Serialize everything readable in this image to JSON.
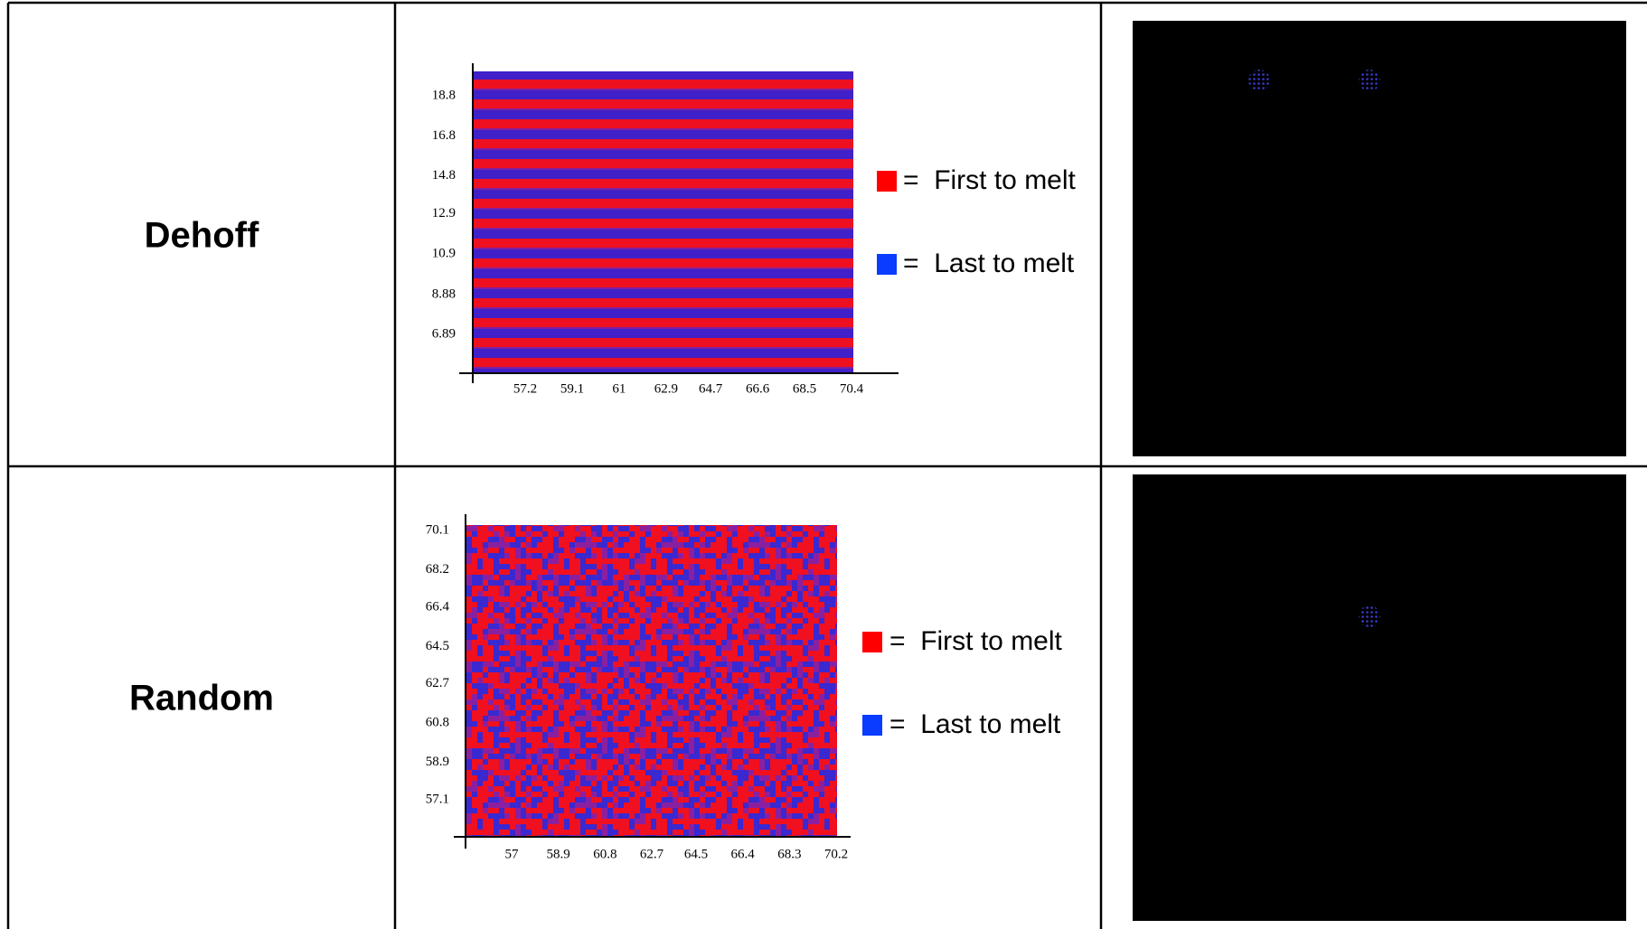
{
  "table": {
    "rows": [
      {
        "label": "Dehoff",
        "chart": {
          "yticks": [
            18.8,
            16.8,
            14.8,
            12.9,
            10.9,
            8.88,
            6.89
          ],
          "xticks": [
            57.2,
            59.1,
            61,
            62.9,
            64.7,
            66.6,
            68.5,
            70.4
          ],
          "legend": [
            {
              "label": "=  First to melt",
              "color": "#ff0000"
            },
            {
              "label": "=  Last to melt",
              "color": "#0a3cff"
            }
          ]
        }
      },
      {
        "label": "Random",
        "chart": {
          "yticks": [
            70.1,
            68.2,
            66.4,
            64.5,
            62.7,
            60.8,
            58.9,
            57.1
          ],
          "xticks": [
            57,
            58.9,
            60.8,
            62.7,
            64.5,
            66.4,
            68.3,
            70.2
          ],
          "legend": [
            {
              "label": "=  First to melt",
              "color": "#ff0000"
            },
            {
              "label": "=  Last to melt",
              "color": "#0a3cff"
            }
          ]
        }
      }
    ]
  }
}
